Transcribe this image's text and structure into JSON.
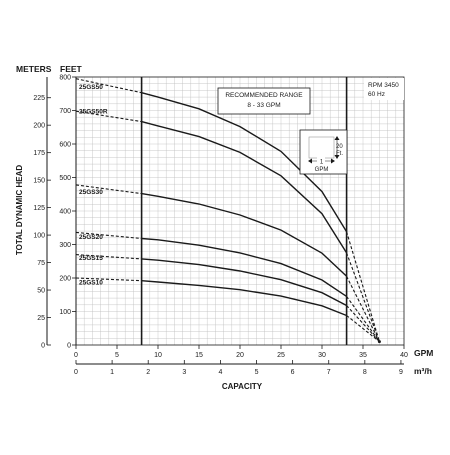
{
  "chart_data": {
    "type": "line",
    "title": "",
    "xlabel": "CAPACITY",
    "ylabel": "TOTAL DYNAMIC HEAD",
    "x_unit_primary": "GPM",
    "x_unit_secondary": "m³/h",
    "y_unit_primary": "FEET",
    "y_unit_secondary": "METERS",
    "xlim": [
      0,
      40
    ],
    "ylim_feet": [
      0,
      800
    ],
    "x_ticks_gpm": [
      "0",
      "5",
      "10",
      "15",
      "20",
      "25",
      "30",
      "35",
      "40"
    ],
    "x_ticks_m3h": [
      "0",
      "1",
      "2",
      "3",
      "4",
      "5",
      "6",
      "7",
      "8",
      "9"
    ],
    "y_ticks_feet": [
      "0",
      "100",
      "200",
      "300",
      "400",
      "500",
      "600",
      "700",
      "800"
    ],
    "y_ticks_meters": [
      "0",
      "25",
      "50",
      "75",
      "100",
      "125",
      "150",
      "175",
      "200",
      "225"
    ],
    "recommended_range": {
      "label": "RECOMMENDED RANGE",
      "sublabel": "8 - 33 GPM",
      "from_gpm": 8,
      "to_gpm": 33
    },
    "rpm_note": "RPM 3450",
    "freq_note": "60 Hz",
    "scale_key": {
      "vertical_label": "20",
      "vertical_unit": "Ft.",
      "horizontal_label": "1",
      "horizontal_unit": "GPM"
    },
    "grid": true,
    "series": [
      {
        "name": "25GS50",
        "label_y_ft": 770,
        "points": [
          [
            0,
            795
          ],
          [
            8,
            753
          ],
          [
            10,
            740
          ],
          [
            15,
            705
          ],
          [
            20,
            652
          ],
          [
            25,
            578
          ],
          [
            30,
            458
          ],
          [
            33,
            338
          ],
          [
            37,
            10
          ]
        ]
      },
      {
        "name": "25GS50R",
        "label_y_ft": 697,
        "points": [
          [
            0,
            698
          ],
          [
            8,
            667
          ],
          [
            10,
            654
          ],
          [
            15,
            622
          ],
          [
            20,
            575
          ],
          [
            25,
            505
          ],
          [
            30,
            392
          ],
          [
            33,
            275
          ],
          [
            37,
            10
          ]
        ]
      },
      {
        "name": "25GS30",
        "label_y_ft": 456,
        "points": [
          [
            0,
            478
          ],
          [
            8,
            452
          ],
          [
            10,
            444
          ],
          [
            15,
            421
          ],
          [
            20,
            388
          ],
          [
            25,
            343
          ],
          [
            30,
            274
          ],
          [
            33,
            205
          ],
          [
            37,
            10
          ]
        ]
      },
      {
        "name": "25GS20",
        "label_y_ft": 322,
        "points": [
          [
            0,
            336
          ],
          [
            8,
            318
          ],
          [
            10,
            314
          ],
          [
            15,
            298
          ],
          [
            20,
            275
          ],
          [
            25,
            243
          ],
          [
            30,
            194
          ],
          [
            33,
            145
          ],
          [
            37,
            10
          ]
        ]
      },
      {
        "name": "25GS15",
        "label_y_ft": 260,
        "points": [
          [
            0,
            270
          ],
          [
            8,
            257
          ],
          [
            10,
            253
          ],
          [
            15,
            240
          ],
          [
            20,
            221
          ],
          [
            25,
            195
          ],
          [
            30,
            156
          ],
          [
            33,
            118
          ],
          [
            37,
            10
          ]
        ]
      },
      {
        "name": "25GS10",
        "label_y_ft": 186,
        "points": [
          [
            0,
            200
          ],
          [
            8,
            192
          ],
          [
            10,
            188
          ],
          [
            15,
            178
          ],
          [
            20,
            165
          ],
          [
            25,
            146
          ],
          [
            30,
            117
          ],
          [
            33,
            88
          ],
          [
            37,
            10
          ]
        ]
      }
    ]
  }
}
